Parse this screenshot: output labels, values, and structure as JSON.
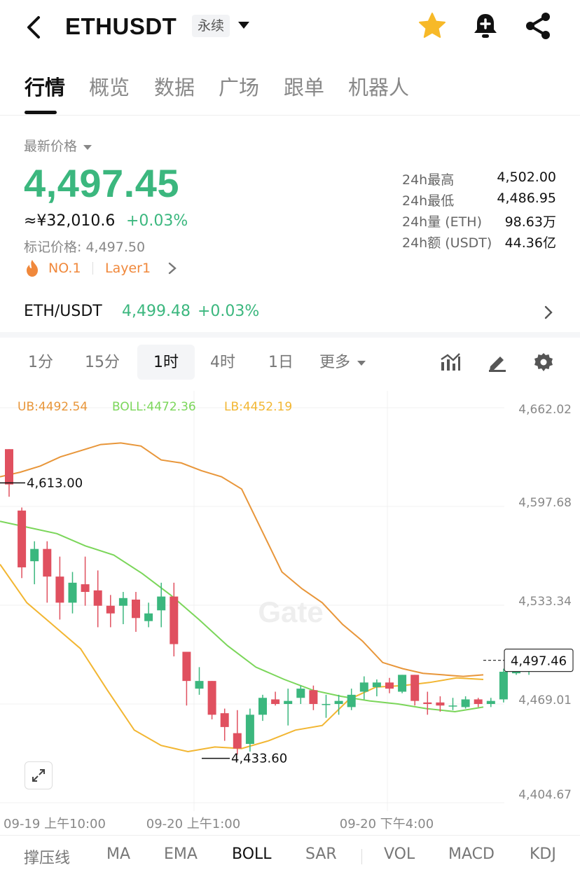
{
  "header": {
    "title": "ETHUSDT",
    "badge": "永续"
  },
  "tabs": [
    {
      "label": "行情",
      "active": true
    },
    {
      "label": "概览"
    },
    {
      "label": "数据"
    },
    {
      "label": "广场"
    },
    {
      "label": "跟单"
    },
    {
      "label": "机器人"
    }
  ],
  "price": {
    "label": "最新价格",
    "last": "4,497.45",
    "cny": "≈¥32,010.6",
    "change": "+0.03%",
    "mark": "标记价格: 4,497.50",
    "rank_tag": "NO.1",
    "sector_tag": "Layer1"
  },
  "stats": [
    {
      "label": "24h最高",
      "value": "4,502.00"
    },
    {
      "label": "24h最低",
      "value": "4,486.95"
    },
    {
      "label": "24h量 (ETH)",
      "value": "98.63万"
    },
    {
      "label": "24h额 (USDT)",
      "value": "44.36亿"
    }
  ],
  "spot": {
    "pair": "ETH/USDT",
    "price": "4,499.48",
    "change": "+0.03%"
  },
  "timeframes": [
    {
      "label": "1分"
    },
    {
      "label": "15分"
    },
    {
      "label": "1时",
      "active": true
    },
    {
      "label": "4时"
    },
    {
      "label": "1日"
    },
    {
      "label": "更多"
    }
  ],
  "chart": {
    "ub": "UB:4492.54",
    "boll": "BOLL:4472.36",
    "lb": "LB:4452.19",
    "y_ticks": [
      "4,662.02",
      "4,597.68",
      "4,533.34",
      "4,469.01",
      "4,404.67"
    ],
    "x_ticks": [
      "09-19 上午10:00",
      "09-20 上午1:00",
      "09-20 下午4:00"
    ],
    "high_label": "4,613.00",
    "low_label": "4,433.60",
    "current_label": "4,497.46",
    "watermark": "Gate",
    "colors": {
      "up": "#3bb77e",
      "down": "#e0505f",
      "ub": "#e8963a",
      "mid": "#7bd65a",
      "lb": "#f2b632"
    }
  },
  "chart_data": {
    "type": "candlestick",
    "ylim": [
      4404.67,
      4662.02
    ],
    "candles": [
      {
        "o": 4635,
        "c": 4612,
        "h": 4635,
        "l": 4604
      },
      {
        "o": 4595,
        "c": 4558,
        "h": 4597,
        "l": 4551
      },
      {
        "o": 4562,
        "c": 4570,
        "h": 4575,
        "l": 4547
      },
      {
        "o": 4570,
        "c": 4552,
        "h": 4575,
        "l": 4535
      },
      {
        "o": 4552,
        "c": 4535,
        "h": 4565,
        "l": 4524
      },
      {
        "o": 4535,
        "c": 4548,
        "h": 4555,
        "l": 4528
      },
      {
        "o": 4547,
        "c": 4542,
        "h": 4565,
        "l": 4533
      },
      {
        "o": 4543,
        "c": 4533,
        "h": 4556,
        "l": 4519
      },
      {
        "o": 4533,
        "c": 4528,
        "h": 4540,
        "l": 4519
      },
      {
        "o": 4533,
        "c": 4538,
        "h": 4542,
        "l": 4521
      },
      {
        "o": 4537,
        "c": 4525,
        "h": 4542,
        "l": 4516
      },
      {
        "o": 4523,
        "c": 4528,
        "h": 4535,
        "l": 4519
      },
      {
        "o": 4530,
        "c": 4539,
        "h": 4548,
        "l": 4519
      },
      {
        "o": 4539,
        "c": 4508,
        "h": 4548,
        "l": 4500
      },
      {
        "o": 4503,
        "c": 4484,
        "h": 4503,
        "l": 4468
      },
      {
        "o": 4479,
        "c": 4484,
        "h": 4493,
        "l": 4475
      },
      {
        "o": 4484,
        "c": 4462,
        "h": 4484,
        "l": 4459
      },
      {
        "o": 4463,
        "c": 4454,
        "h": 4466,
        "l": 4445
      },
      {
        "o": 4450,
        "c": 4440,
        "h": 4465,
        "l": 4436
      },
      {
        "o": 4443,
        "c": 4462,
        "h": 4466,
        "l": 4438
      },
      {
        "o": 4462,
        "c": 4473,
        "h": 4475,
        "l": 4458
      },
      {
        "o": 4472,
        "c": 4469,
        "h": 4477,
        "l": 4468
      },
      {
        "o": 4469,
        "c": 4471,
        "h": 4479,
        "l": 4455
      },
      {
        "o": 4473,
        "c": 4479,
        "h": 4481,
        "l": 4469
      },
      {
        "o": 4478,
        "c": 4469,
        "h": 4481,
        "l": 4465
      },
      {
        "o": 4469,
        "c": 4469,
        "h": 4475,
        "l": 4460
      },
      {
        "o": 4469,
        "c": 4471,
        "h": 4475,
        "l": 4462
      },
      {
        "o": 4467,
        "c": 4475,
        "h": 4479,
        "l": 4465
      },
      {
        "o": 4477,
        "c": 4483,
        "h": 4487,
        "l": 4472
      },
      {
        "o": 4480,
        "c": 4483,
        "h": 4485,
        "l": 4474
      },
      {
        "o": 4483,
        "c": 4479,
        "h": 4486,
        "l": 4476
      },
      {
        "o": 4477,
        "c": 4488,
        "h": 4488,
        "l": 4476
      },
      {
        "o": 4488,
        "c": 4471,
        "h": 4488,
        "l": 4468
      },
      {
        "o": 4470,
        "c": 4469,
        "h": 4477,
        "l": 4462
      },
      {
        "o": 4470,
        "c": 4468,
        "h": 4474,
        "l": 4464
      },
      {
        "o": 4468,
        "c": 4468,
        "h": 4473,
        "l": 4465
      },
      {
        "o": 4467,
        "c": 4472,
        "h": 4474,
        "l": 4466
      },
      {
        "o": 4472,
        "c": 4469,
        "h": 4473,
        "l": 4467
      },
      {
        "o": 4469,
        "c": 4471,
        "h": 4473,
        "l": 4467
      },
      {
        "o": 4472,
        "c": 4490,
        "h": 4492,
        "l": 4470
      },
      {
        "o": 4489,
        "c": 4496,
        "h": 4503,
        "l": 4488
      },
      {
        "o": 4496,
        "c": 4497,
        "h": 4504,
        "l": 4488
      }
    ],
    "ub": [
      4617,
      4620,
      4624,
      4630,
      4634,
      4638,
      4639,
      4637,
      4628,
      4626,
      4621,
      4617,
      4609,
      4582,
      4555,
      4544,
      4535,
      4521,
      4510,
      4496,
      4492,
      4489,
      4488,
      4487,
      4488
    ],
    "mid": [
      4588,
      4584,
      4580,
      4572,
      4566,
      4554,
      4540,
      4524,
      4507,
      4493,
      4485,
      4478,
      4474,
      4471,
      4469,
      4466,
      4464,
      4467
    ],
    "lb": [
      4560,
      4535,
      4520,
      4505,
      4478,
      4452,
      4442,
      4438,
      4441,
      4440,
      4445,
      4452,
      4455,
      4472,
      4480,
      4481,
      4483,
      4486,
      4485
    ]
  },
  "indicators": [
    {
      "label": "撑压线"
    },
    {
      "label": "MA"
    },
    {
      "label": "EMA"
    },
    {
      "label": "BOLL",
      "active": true
    },
    {
      "label": "SAR"
    },
    {
      "label": "VOL"
    },
    {
      "label": "MACD"
    },
    {
      "label": "KDJ"
    }
  ]
}
